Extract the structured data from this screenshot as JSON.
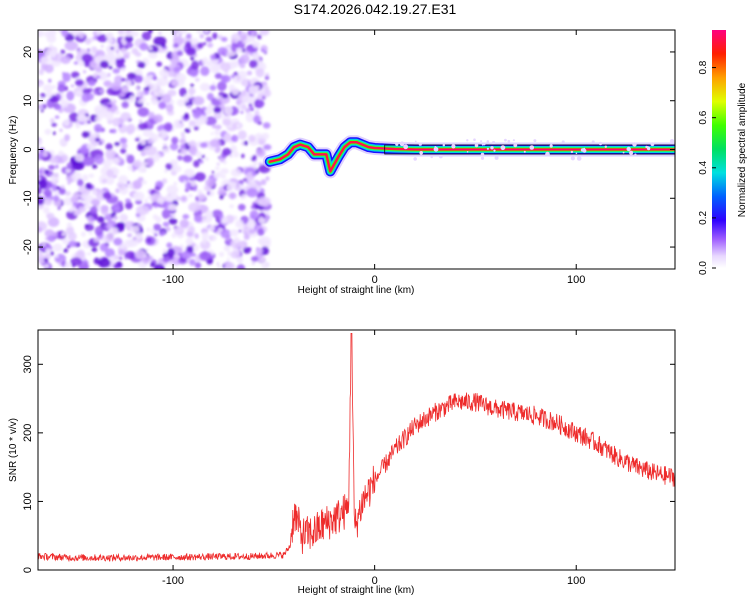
{
  "title": "S174.2026.042.19.27.E31",
  "chart_data": [
    {
      "type": "heatmap",
      "xlabel": "Height of straight line (km)",
      "ylabel": "Frequency (Hz)",
      "xlim": [
        -167,
        149
      ],
      "ylim": [
        -24.5,
        24.5
      ],
      "xticks": [
        -100,
        0,
        100
      ],
      "yticks": [
        -20,
        -10,
        0,
        10,
        20
      ],
      "noise_region_x": [
        -167,
        -53
      ],
      "signal_track": {
        "x": [
          -52,
          -47,
          -43,
          -40,
          -37,
          -33,
          -30,
          -27,
          -24,
          -22,
          -20,
          -18,
          -15,
          -12,
          -9,
          -6,
          -3,
          0,
          5,
          10,
          20,
          149
        ],
        "y": [
          -2.5,
          -2.0,
          -1.0,
          0.5,
          1.0,
          0.5,
          -1.0,
          -1.0,
          -1.0,
          -4.5,
          -3.0,
          -1.5,
          0.5,
          1.5,
          1.5,
          1.0,
          0.5,
          0.3,
          0.2,
          0.1,
          0.0,
          0.0
        ]
      },
      "colorbar": {
        "label": "Normalized spectral amplitude",
        "range": [
          0.0,
          0.95
        ],
        "ticks": [
          "0.0",
          "0.2",
          "0.4",
          "0.6",
          "0.8"
        ]
      }
    },
    {
      "type": "line",
      "xlabel": "Height of straight line (km)",
      "ylabel": "SNR (10 * v/v)",
      "xlim": [
        -167,
        149
      ],
      "ylim": [
        0,
        350
      ],
      "xticks": [
        -100,
        0,
        100
      ],
      "yticks": [
        0,
        100,
        200,
        300
      ],
      "series": [
        {
          "name": "SNR",
          "color": "#ee2b2b",
          "x": [
            -167,
            -150,
            -120,
            -90,
            -60,
            -45,
            -42,
            -40,
            -36,
            -30,
            -26,
            -20,
            -17,
            -13,
            -11.5,
            -10,
            -6,
            0,
            10,
            20,
            30,
            40,
            50,
            60,
            70,
            80,
            90,
            100,
            110,
            120,
            130,
            140,
            149
          ],
          "y": [
            20,
            18,
            18,
            19,
            20,
            22,
            35,
            85,
            50,
            55,
            65,
            75,
            80,
            90,
            340,
            60,
            100,
            130,
            175,
            210,
            230,
            245,
            245,
            235,
            230,
            225,
            215,
            200,
            185,
            165,
            150,
            140,
            135
          ]
        }
      ]
    }
  ]
}
